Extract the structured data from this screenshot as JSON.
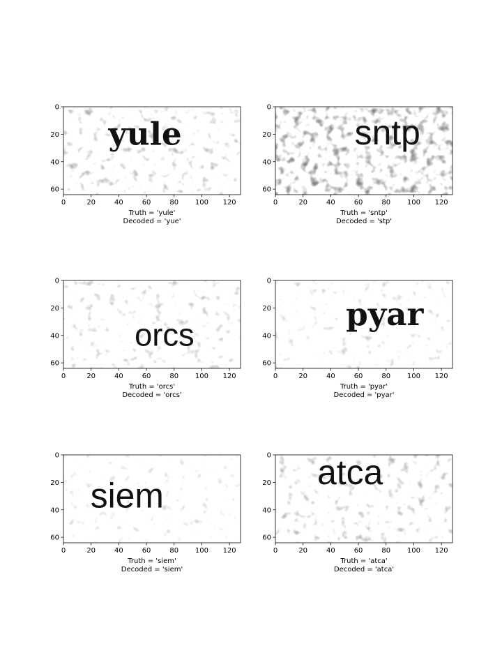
{
  "chart_data": [
    {
      "type": "image",
      "word": "yule",
      "truth_label": "Truth = 'yule'",
      "decoded_label": "Decoded = 'yue'",
      "font": "serif",
      "word_center": [
        59,
        20
      ],
      "word_height": 20,
      "noise": 0.28,
      "xlim": [
        0,
        128
      ],
      "ylim": [
        64,
        0
      ],
      "x_ticks": [
        "0",
        "20",
        "40",
        "60",
        "80",
        "100",
        "120"
      ],
      "y_ticks": [
        "0",
        "20",
        "40",
        "60"
      ]
    },
    {
      "type": "image",
      "word": "sntp",
      "truth_label": "Truth = 'sntp'",
      "decoded_label": "Decoded = 'stp'",
      "font": "sans",
      "word_center": [
        81,
        19
      ],
      "word_height": 22,
      "noise": 0.55,
      "xlim": [
        0,
        128
      ],
      "ylim": [
        64,
        0
      ],
      "x_ticks": [
        "0",
        "20",
        "40",
        "60",
        "80",
        "100",
        "120"
      ],
      "y_ticks": [
        "0",
        "20",
        "40",
        "60"
      ]
    },
    {
      "type": "image",
      "word": "orcs",
      "truth_label": "Truth = 'orcs'",
      "decoded_label": "Decoded = 'orcs'",
      "font": "sans",
      "word_center": [
        73,
        40
      ],
      "word_height": 20,
      "noise": 0.22,
      "xlim": [
        0,
        128
      ],
      "ylim": [
        64,
        0
      ],
      "x_ticks": [
        "0",
        "20",
        "40",
        "60",
        "80",
        "100",
        "120"
      ],
      "y_ticks": [
        "0",
        "20",
        "40",
        "60"
      ]
    },
    {
      "type": "image",
      "word": "pyar",
      "truth_label": "Truth = 'pyar'",
      "decoded_label": "Decoded = 'pyar'",
      "font": "serif",
      "word_center": [
        79,
        25
      ],
      "word_height": 20,
      "noise": 0.15,
      "xlim": [
        0,
        128
      ],
      "ylim": [
        64,
        0
      ],
      "x_ticks": [
        "0",
        "20",
        "40",
        "60",
        "80",
        "100",
        "120"
      ],
      "y_ticks": [
        "0",
        "20",
        "40",
        "60"
      ]
    },
    {
      "type": "image",
      "word": "siem",
      "truth_label": "Truth = 'siem'",
      "decoded_label": "Decoded = 'siem'",
      "font": "sans",
      "word_center": [
        46,
        30
      ],
      "word_height": 22,
      "noise": 0.08,
      "xlim": [
        0,
        128
      ],
      "ylim": [
        64,
        0
      ],
      "x_ticks": [
        "0",
        "20",
        "40",
        "60",
        "80",
        "100",
        "120"
      ],
      "y_ticks": [
        "0",
        "20",
        "40",
        "60"
      ]
    },
    {
      "type": "image",
      "word": "atca",
      "truth_label": "Truth = 'atca'",
      "decoded_label": "Decoded = 'atca'",
      "font": "sans",
      "word_center": [
        54,
        13
      ],
      "word_height": 22,
      "noise": 0.25,
      "xlim": [
        0,
        128
      ],
      "ylim": [
        64,
        0
      ],
      "x_ticks": [
        "0",
        "20",
        "40",
        "60",
        "80",
        "100",
        "120"
      ],
      "y_ticks": [
        "0",
        "20",
        "40",
        "60"
      ]
    }
  ]
}
